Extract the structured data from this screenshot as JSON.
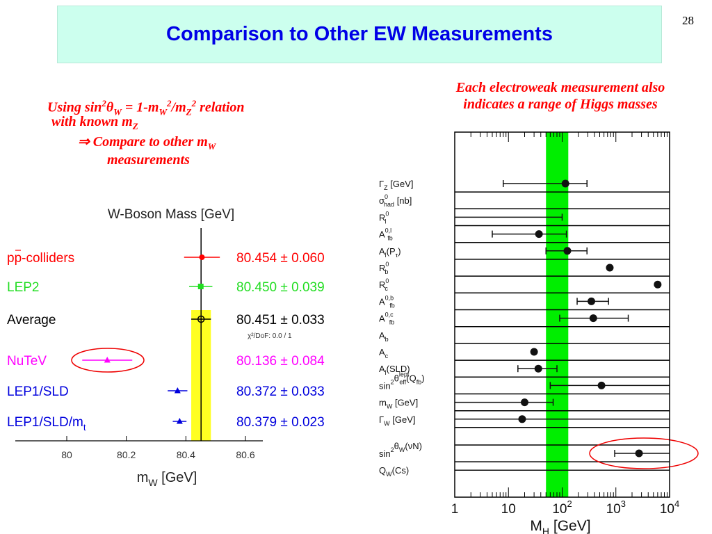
{
  "slide": {
    "title": "Comparison to Other EW Measurements",
    "page_number": "28"
  },
  "notes": {
    "right_line1": "Each electroweak measurement also",
    "right_line2": "indicates a range of Higgs masses",
    "left": {
      "using": "Using sin",
      "eq_sign": " = 1-m",
      "slash": "/m",
      "relation": " relation",
      "with_known": "with known m",
      "compare": "Compare to other m",
      "measurements": "measurements",
      "theta": "θ",
      "arrow": "⇒",
      "sub_W": "W",
      "sub_Z": "Z",
      "sup_2": "2"
    }
  },
  "chart_data": [
    {
      "type": "scatter",
      "title": "W-Boson Mass  [GeV]",
      "xlabel_main": "m",
      "xlabel_sub": "W",
      "xlabel_unit": "[GeV]",
      "xlim": [
        79.9,
        80.75
      ],
      "xticks": [
        80,
        80.2,
        80.4,
        80.6
      ],
      "average_band": [
        80.418,
        80.484
      ],
      "average_line": 80.451,
      "chi2_text": "χ²/DoF: 0.0 / 1",
      "highlight_circle_on": "NuTeV",
      "series": [
        {
          "name": "pp-colliders",
          "value": 80.454,
          "error": 0.06,
          "label": "80.454 ± 0.060",
          "color": "#ff0000",
          "marker": "circle"
        },
        {
          "name": "LEP2",
          "value": 80.45,
          "error": 0.039,
          "label": "80.450 ± 0.039",
          "color": "#22dd22",
          "marker": "square"
        },
        {
          "name": "Average",
          "value": 80.451,
          "error": 0.033,
          "label": "80.451 ± 0.033",
          "color": "#000000",
          "marker": "open-circle"
        },
        {
          "name": "NuTeV",
          "value": 80.136,
          "error": 0.084,
          "label": "80.136 ± 0.084",
          "color": "#ff00ff",
          "marker": "triangle"
        },
        {
          "name": "LEP1/SLD",
          "value": 80.372,
          "error": 0.033,
          "label": "80.372 ± 0.033",
          "color": "#0000dd",
          "marker": "triangle"
        },
        {
          "name": "LEP1/SLD/m",
          "name_sub": "t",
          "value": 80.379,
          "error": 0.023,
          "label": "80.379 ± 0.023",
          "color": "#0000dd",
          "marker": "triangle"
        }
      ]
    },
    {
      "type": "scatter",
      "xscale": "log",
      "xlim": [
        1,
        10000
      ],
      "xlabel_main": "M",
      "xlabel_sub": "H",
      "xlabel_unit": "[GeV]",
      "xtick_labels": [
        "1",
        "10",
        "10",
        "10",
        "10"
      ],
      "xtick_sups": [
        "",
        "",
        "2",
        "3",
        "4"
      ],
      "band": [
        50,
        130
      ],
      "band_color": "#00ee00",
      "highlight_circle_on": "sin2thetaW(vN)",
      "measurements": [
        {
          "main": "Γ",
          "sub": "Z",
          "rest": " [GeV]",
          "center": 115,
          "low": 8,
          "high": 290
        },
        {
          "main": "σ",
          "sub": "had",
          "sup": "0",
          "rest": " [nb]",
          "center": null,
          "low": null,
          "high": null
        },
        {
          "main": "R",
          "sub": "l",
          "sup": "0",
          "rest": "",
          "center": null,
          "low": 1,
          "high": 100
        },
        {
          "main": "A",
          "sub": "fb",
          "sup": "0,l",
          "rest": "",
          "center": 37,
          "low": 5,
          "high": 120
        },
        {
          "main": "A",
          "sub": "l",
          "rest": "(P",
          "rest_sub": "τ",
          "rest_after": ")",
          "center": 125,
          "low": 50,
          "high": 290
        },
        {
          "main": "R",
          "sub": "b",
          "sup": "0",
          "rest": "",
          "center": 770,
          "low": null,
          "high": null
        },
        {
          "main": "R",
          "sub": "c",
          "sup": "0",
          "rest": "",
          "center": 6000,
          "low": null,
          "high": null
        },
        {
          "main": "A",
          "sub": "fb",
          "sup": "0,b",
          "rest": "",
          "center": 350,
          "low": 190,
          "high": 730
        },
        {
          "main": "A",
          "sub": "fb",
          "sup": "0,c",
          "rest": "",
          "center": 380,
          "low": 90,
          "high": 1700
        },
        {
          "main": "A",
          "sub": "b",
          "rest": "",
          "center": null,
          "low": null,
          "high": null
        },
        {
          "main": "A",
          "sub": "c",
          "rest": "",
          "center": 30,
          "low": null,
          "high": null
        },
        {
          "main": "A",
          "sub": "l",
          "rest": "(SLD)",
          "center": 36,
          "low": 15,
          "high": 80
        },
        {
          "main": "sin",
          "sup": "2",
          "main2": "θ",
          "sub2": "eff",
          "sup2": "lept",
          "rest": "(Q",
          "rest_sub": "fb",
          "rest_after": ")",
          "center": 540,
          "low": 60,
          "high": 10000
        },
        {
          "main": "m",
          "sub": "W",
          "rest": " [GeV]",
          "center": 20,
          "low": 1,
          "high": 68
        },
        {
          "main": "Γ",
          "sub": "W",
          "rest": " [GeV]",
          "center": 18,
          "low": 1,
          "high": 10000
        },
        {
          "main": "sin",
          "sup": "2",
          "main2": "θ",
          "sub2": "W",
          "rest": "(νN)",
          "center": 2700,
          "low": 950,
          "high": 10000,
          "gap_before": true
        },
        {
          "main": "Q",
          "sub": "W",
          "rest": "(Cs)",
          "center": null,
          "low": 1,
          "high": 10000
        }
      ]
    }
  ]
}
